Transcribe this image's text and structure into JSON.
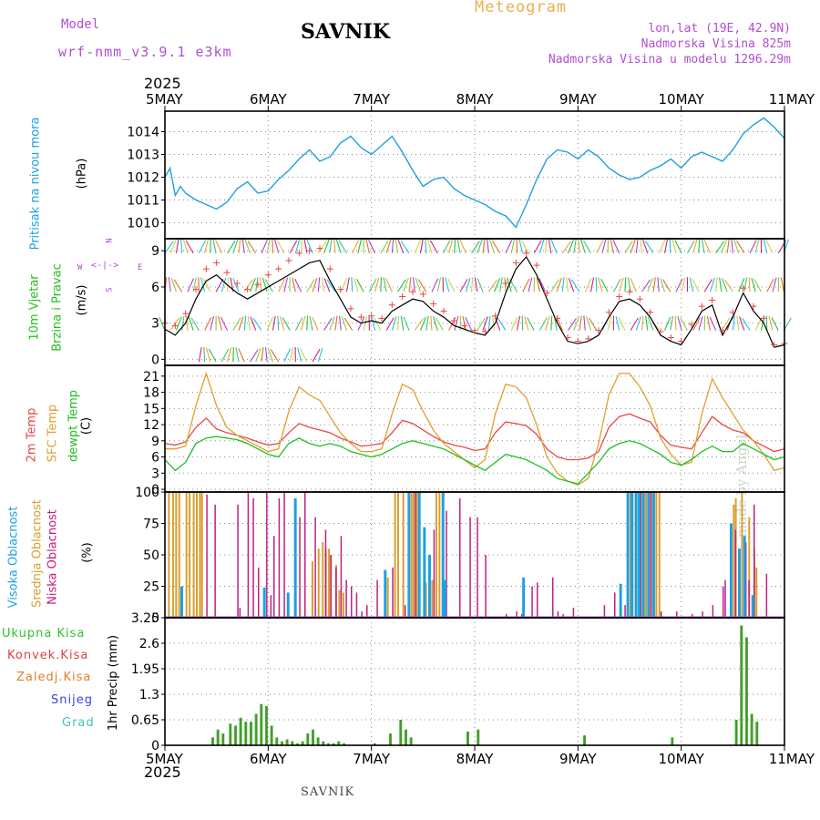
{
  "header": {
    "model_label": "Model",
    "model_name": "wrf-nmm_v3.9.1 e3km",
    "station": "SAVNIK",
    "title": "Meteogram",
    "lonlat": "lon,lat (19E, 42.9N)",
    "altitude": "Nadmorska Visina 825m",
    "model_altitude": "Nadmorska Visina u modelu 1296.29m",
    "footer_station": "SAVNIK",
    "credit": "made by Angel"
  },
  "colors": {
    "pressure": "#1ea0e0",
    "temp2m": "#e84848",
    "sfc": "#e0a030",
    "dewpt": "#20c020",
    "purple": "#b050d0",
    "high": "#20a0e0",
    "mid": "#d8a030",
    "low": "#c02080",
    "precip_total": "#30c030",
    "precip_conv": "#e04040",
    "precip_strat": "#e08030",
    "snow": "#4040e0",
    "hail": "#40c0c0"
  },
  "time_axis": {
    "year": "2025",
    "days": [
      "5MAY",
      "6MAY",
      "7MAY",
      "8MAY",
      "9MAY",
      "10MAY",
      "11MAY"
    ]
  },
  "panel_labels": {
    "pressure": [
      "Pritisak na nivou mora",
      "(hPa)"
    ],
    "wind": [
      "10m Vjetar",
      "Brzina i Pravac",
      "(m/s)"
    ],
    "temp": [
      "2m Temp",
      "SFC Temp",
      "dewpt Temp",
      "(C)"
    ],
    "cloud": [
      "Visoka Oblacnost",
      "Srednja Oblacnost",
      "Niska Oblacnost",
      "(%)"
    ],
    "precip": [
      "Ukupna Kisa",
      "Konvek.Kisa",
      "Zaledj.Kisa",
      "Snijeg",
      "Grad",
      "1hr Precip (mm)"
    ],
    "compass": [
      "W",
      "<-|->",
      "E",
      "N",
      "S"
    ]
  },
  "chart_data": [
    {
      "type": "line",
      "name": "pressure",
      "ylabel": "(hPa)",
      "ylim": [
        1009.3,
        1014.9
      ],
      "yticks": [
        "1010",
        "1011",
        "1012",
        "1013",
        "1014"
      ],
      "x_days": [
        0,
        0.05,
        0.1,
        0.15,
        0.2,
        0.3,
        0.4,
        0.5,
        0.6,
        0.7,
        0.8,
        0.9,
        1.0,
        1.1,
        1.2,
        1.3,
        1.4,
        1.5,
        1.6,
        1.7,
        1.8,
        1.9,
        2.0,
        2.1,
        2.2,
        2.3,
        2.4,
        2.5,
        2.6,
        2.7,
        2.8,
        2.9,
        3.0,
        3.1,
        3.2,
        3.3,
        3.4,
        3.5,
        3.6,
        3.7,
        3.8,
        3.9,
        4.0,
        4.1,
        4.2,
        4.3,
        4.4,
        4.5,
        4.6,
        4.7,
        4.8,
        4.9,
        5.0,
        5.1,
        5.2,
        5.3,
        5.4,
        5.5,
        5.6,
        5.7,
        5.8,
        5.9,
        6.0
      ],
      "values": [
        1012.0,
        1012.4,
        1011.2,
        1011.6,
        1011.3,
        1011.0,
        1010.8,
        1010.6,
        1010.9,
        1011.5,
        1011.8,
        1011.3,
        1011.4,
        1011.9,
        1012.3,
        1012.8,
        1013.2,
        1012.7,
        1012.9,
        1013.5,
        1013.8,
        1013.3,
        1013.0,
        1013.4,
        1013.8,
        1013.1,
        1012.3,
        1011.6,
        1011.9,
        1012.0,
        1011.5,
        1011.2,
        1011.0,
        1010.8,
        1010.5,
        1010.3,
        1009.8,
        1010.8,
        1011.9,
        1012.8,
        1013.2,
        1013.1,
        1012.8,
        1013.2,
        1012.9,
        1012.4,
        1012.1,
        1011.9,
        1012.0,
        1012.3,
        1012.5,
        1012.8,
        1012.4,
        1012.9,
        1013.1,
        1012.9,
        1012.7,
        1013.2,
        1013.9,
        1014.3,
        1014.6,
        1014.2,
        1013.7
      ]
    },
    {
      "type": "line",
      "name": "wind_speed",
      "ylabel": "(m/s)",
      "ylim": [
        -0.5,
        10
      ],
      "yticks": [
        "0",
        "3",
        "6",
        "9"
      ],
      "x_days": [
        0,
        0.1,
        0.2,
        0.3,
        0.4,
        0.5,
        0.6,
        0.7,
        0.8,
        0.9,
        1.0,
        1.1,
        1.2,
        1.3,
        1.4,
        1.5,
        1.6,
        1.7,
        1.8,
        1.9,
        2.0,
        2.1,
        2.2,
        2.3,
        2.4,
        2.5,
        2.6,
        2.7,
        2.8,
        2.9,
        3.0,
        3.1,
        3.2,
        3.3,
        3.4,
        3.5,
        3.6,
        3.7,
        3.8,
        3.9,
        4.0,
        4.1,
        4.2,
        4.3,
        4.4,
        4.5,
        4.6,
        4.7,
        4.8,
        4.9,
        5.0,
        5.1,
        5.2,
        5.3,
        5.4,
        5.5,
        5.6,
        5.7,
        5.8,
        5.9,
        6.0
      ],
      "values": [
        2.5,
        2.0,
        3.0,
        5.0,
        6.5,
        7.0,
        6.2,
        5.5,
        5.0,
        5.5,
        6.0,
        6.5,
        7.0,
        7.5,
        8.0,
        8.2,
        6.5,
        5.0,
        3.5,
        3.0,
        3.2,
        3.0,
        4.0,
        4.5,
        5.0,
        4.8,
        4.0,
        3.5,
        2.8,
        2.5,
        2.2,
        2.0,
        3.0,
        5.5,
        7.5,
        8.5,
        7.0,
        5.0,
        3.0,
        1.5,
        1.3,
        1.5,
        2.0,
        3.5,
        4.8,
        5.0,
        4.5,
        3.5,
        2.0,
        1.5,
        1.2,
        2.5,
        4.0,
        4.5,
        2.0,
        3.5,
        5.5,
        4.0,
        3.0,
        1.0,
        1.2
      ],
      "marker_values": [
        3.0,
        2.8,
        3.8,
        5.8,
        7.5,
        8.0,
        7.2,
        6.3,
        5.8,
        6.2,
        7.0,
        7.5,
        8.2,
        8.8,
        9.0,
        9.2,
        7.5,
        5.8,
        4.2,
        3.5,
        3.6,
        3.4,
        4.5,
        5.2,
        5.6,
        5.4,
        4.6,
        4.0,
        3.2,
        2.8,
        2.4,
        2.3,
        3.6,
        6.3,
        8.0,
        8.8,
        7.8,
        5.5,
        3.4,
        1.8,
        1.5,
        1.7,
        2.4,
        3.9,
        5.2,
        5.6,
        5.0,
        3.9,
        2.3,
        1.8,
        1.5,
        2.9,
        4.4,
        4.9,
        2.4,
        3.9,
        5.9,
        4.4,
        3.4,
        1.2,
        1.3
      ]
    },
    {
      "type": "line",
      "name": "temperature",
      "ylabel": "(C)",
      "ylim": [
        -0.5,
        23
      ],
      "yticks": [
        "0",
        "3",
        "6",
        "9",
        "12",
        "15",
        "18",
        "21"
      ],
      "x_days": [
        0,
        0.1,
        0.2,
        0.3,
        0.4,
        0.5,
        0.6,
        0.7,
        0.8,
        0.9,
        1.0,
        1.1,
        1.2,
        1.3,
        1.4,
        1.5,
        1.6,
        1.7,
        1.8,
        1.9,
        2.0,
        2.1,
        2.2,
        2.3,
        2.4,
        2.5,
        2.6,
        2.7,
        2.8,
        2.9,
        3.0,
        3.1,
        3.2,
        3.3,
        3.4,
        3.5,
        3.6,
        3.7,
        3.8,
        3.9,
        4.0,
        4.1,
        4.2,
        4.3,
        4.4,
        4.5,
        4.6,
        4.7,
        4.8,
        4.9,
        5.0,
        5.1,
        5.2,
        5.3,
        5.4,
        5.5,
        5.6,
        5.7,
        5.8,
        5.9,
        6.0
      ],
      "series": [
        {
          "name": "2m Temp",
          "values": [
            8.5,
            8.2,
            8.8,
            11.5,
            13.2,
            11.2,
            10.5,
            10.0,
            9.5,
            8.8,
            8.2,
            8.5,
            10.5,
            12.2,
            11.5,
            11.0,
            10.5,
            9.5,
            8.8,
            8.0,
            8.2,
            8.5,
            10.5,
            12.8,
            12.2,
            11.0,
            9.8,
            8.8,
            8.2,
            7.8,
            7.2,
            7.5,
            10.5,
            12.5,
            12.2,
            11.8,
            10.2,
            7.5,
            6.0,
            5.5,
            5.5,
            5.8,
            7.0,
            11.5,
            13.5,
            14.0,
            13.2,
            12.5,
            10.0,
            8.2,
            7.8,
            7.5,
            10.5,
            13.5,
            12.0,
            11.0,
            10.5,
            9.0,
            8.0,
            7.0,
            7.5
          ]
        },
        {
          "name": "SFC Temp",
          "values": [
            7.5,
            7.5,
            8.0,
            15.5,
            21.5,
            15.5,
            11.5,
            10.0,
            9.0,
            8.0,
            7.0,
            7.5,
            14.5,
            19.0,
            17.5,
            16.5,
            13.5,
            10.5,
            8.5,
            7.0,
            7.0,
            7.5,
            14.0,
            19.5,
            18.5,
            14.5,
            11.0,
            8.5,
            7.0,
            5.5,
            4.0,
            5.5,
            14.0,
            19.5,
            19.0,
            17.0,
            12.0,
            6.0,
            3.0,
            1.5,
            0.8,
            2.0,
            8.5,
            17.5,
            21.5,
            21.5,
            19.0,
            15.5,
            9.5,
            6.5,
            4.5,
            5.0,
            14.0,
            20.5,
            17.0,
            14.0,
            11.0,
            9.0,
            6.5,
            3.5,
            4.0
          ]
        },
        {
          "name": "dewpt Temp",
          "values": [
            5.5,
            3.5,
            5.0,
            8.5,
            9.5,
            9.8,
            9.5,
            9.2,
            8.5,
            7.5,
            6.5,
            6.0,
            8.5,
            9.5,
            8.5,
            8.0,
            8.5,
            8.0,
            7.0,
            6.5,
            6.0,
            6.5,
            7.5,
            8.5,
            9.0,
            8.5,
            8.0,
            7.5,
            6.5,
            5.5,
            4.5,
            3.5,
            5.0,
            6.5,
            6.0,
            5.5,
            4.5,
            3.5,
            2.0,
            1.5,
            1.0,
            3.0,
            5.0,
            7.5,
            8.5,
            9.0,
            8.5,
            7.5,
            6.5,
            5.0,
            4.5,
            5.5,
            7.0,
            8.0,
            7.0,
            7.0,
            8.5,
            7.5,
            6.5,
            5.5,
            6.0
          ]
        }
      ]
    },
    {
      "type": "bar",
      "name": "cloud_cover",
      "ylabel": "(%)",
      "ylim": [
        0,
        100
      ],
      "yticks": [
        "0",
        "25",
        "50",
        "75",
        "100"
      ],
      "series": [
        {
          "name": "Visoka Oblacnost",
          "x_days": [
            0.15,
            0.95,
            1.18,
            1.25,
            2.12,
            2.35,
            2.45,
            2.5,
            2.55,
            2.68,
            2.7,
            3.46,
            4.4,
            4.47,
            4.51,
            4.55,
            4.58,
            4.62,
            4.67,
            4.72,
            5.47,
            5.55,
            5.6,
            5.68
          ],
          "values": [
            25,
            24,
            20,
            95,
            38,
            100,
            100,
            72,
            50,
            100,
            30,
            32,
            27,
            100,
            100,
            100,
            100,
            100,
            100,
            100,
            75,
            55,
            65,
            18
          ]
        },
        {
          "name": "Srednja Oblacnost",
          "x_days": [
            0.03,
            0.07,
            0.1,
            0.13,
            0.2,
            0.23,
            0.27,
            0.3,
            0.33,
            0.35,
            1.42,
            1.48,
            1.52,
            1.55,
            1.58,
            1.6,
            1.65,
            1.68,
            1.72,
            2.15,
            2.22,
            2.25,
            2.3,
            2.38,
            2.4,
            2.43,
            2.52,
            2.58,
            2.62,
            2.65,
            4.5,
            4.52,
            4.55,
            4.6,
            4.63,
            4.65,
            4.7,
            4.75,
            4.78,
            5.5,
            5.52,
            5.58,
            5.65,
            5.7,
            5.72
          ],
          "values": [
            100,
            100,
            100,
            100,
            100,
            100,
            100,
            100,
            100,
            100,
            45,
            55,
            60,
            55,
            55,
            50,
            42,
            22,
            20,
            32,
            100,
            100,
            100,
            100,
            100,
            100,
            28,
            30,
            100,
            100,
            100,
            100,
            100,
            100,
            100,
            100,
            100,
            100,
            100,
            90,
            95,
            100,
            80,
            55,
            40
          ]
        },
        {
          "name": "Niska Oblacnost",
          "x_days": [
            0.4,
            0.48,
            0.7,
            0.72,
            0.8,
            0.85,
            0.9,
            0.98,
            1.02,
            1.05,
            1.1,
            1.15,
            1.3,
            1.35,
            1.45,
            1.55,
            1.6,
            1.65,
            1.7,
            1.75,
            1.8,
            1.85,
            1.9,
            1.95,
            2.05,
            2.2,
            2.32,
            2.42,
            2.55,
            2.6,
            2.72,
            2.85,
            2.95,
            3.02,
            3.1,
            3.3,
            3.4,
            3.45,
            3.55,
            3.6,
            3.75,
            3.8,
            3.85,
            3.95,
            4.25,
            4.35,
            4.45,
            4.52,
            4.6,
            4.7,
            4.8,
            4.95,
            5.1,
            5.2,
            5.3,
            5.4,
            5.42,
            5.48,
            5.52,
            5.62,
            5.65,
            5.7,
            5.82
          ],
          "values": [
            98,
            90,
            90,
            8,
            100,
            95,
            40,
            100,
            18,
            65,
            95,
            100,
            80,
            100,
            80,
            70,
            50,
            40,
            65,
            30,
            25,
            20,
            5,
            10,
            30,
            40,
            10,
            100,
            20,
            70,
            85,
            95,
            80,
            80,
            50,
            3,
            5,
            3,
            25,
            28,
            32,
            5,
            3,
            8,
            10,
            20,
            10,
            5,
            100,
            100,
            5,
            5,
            3,
            5,
            10,
            25,
            30,
            40,
            70,
            60,
            30,
            90,
            35
          ]
        }
      ]
    },
    {
      "type": "bar",
      "name": "precip_1hr",
      "ylabel": "1hr Precip (mm)",
      "ylim": [
        0,
        3.25
      ],
      "yticks": [
        "0",
        "0.65",
        "1.3",
        "1.95",
        "2.6",
        "3.25"
      ],
      "x_days": [
        0.45,
        0.5,
        0.55,
        0.62,
        0.67,
        0.72,
        0.77,
        0.82,
        0.87,
        0.92,
        0.97,
        1.02,
        1.07,
        1.12,
        1.17,
        1.22,
        1.27,
        1.32,
        1.37,
        1.42,
        1.47,
        1.52,
        1.57,
        1.62,
        1.67,
        1.72,
        2.02,
        2.17,
        2.27,
        2.32,
        2.37,
        2.92,
        3.02,
        4.05,
        4.9,
        5.52,
        5.57,
        5.62,
        5.67,
        5.72
      ],
      "values": [
        0.2,
        0.4,
        0.3,
        0.55,
        0.5,
        0.7,
        0.6,
        0.6,
        0.8,
        1.05,
        1.0,
        0.5,
        0.2,
        0.1,
        0.15,
        0.1,
        0.05,
        0.1,
        0.3,
        0.4,
        0.2,
        0.1,
        0.05,
        0.05,
        0.1,
        0.05,
        0.05,
        0.3,
        0.65,
        0.4,
        0.2,
        0.35,
        0.4,
        0.25,
        0.2,
        0.65,
        3.05,
        2.75,
        0.8,
        0.6
      ]
    }
  ]
}
